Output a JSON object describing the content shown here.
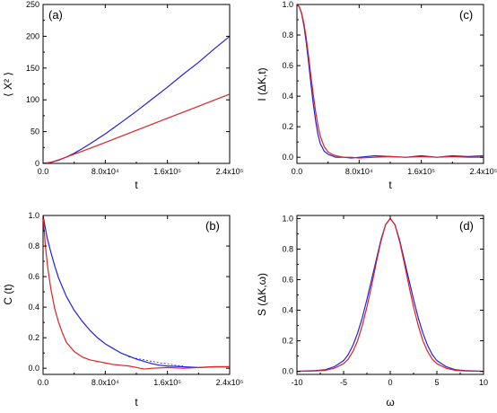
{
  "chart_data": [
    {
      "id": "a",
      "type": "line",
      "panel_label": "(a)",
      "xlabel": "t",
      "ylabel": "⟨ X² ⟩",
      "xlim": [
        0,
        240000
      ],
      "ylim": [
        0,
        250
      ],
      "x_ticks": [
        {
          "value": 0,
          "label": "0.0"
        },
        {
          "value": 80000,
          "label": "8.0x10⁴"
        },
        {
          "value": 160000,
          "label": "1.6x10⁵"
        },
        {
          "value": 240000,
          "label": "2.4x10⁵"
        }
      ],
      "y_ticks": [
        {
          "value": 0,
          "label": "0"
        },
        {
          "value": 50,
          "label": "50"
        },
        {
          "value": 100,
          "label": "100"
        },
        {
          "value": 150,
          "label": "150"
        },
        {
          "value": 200,
          "label": "200"
        },
        {
          "value": 250,
          "label": "250"
        }
      ],
      "series": [
        {
          "color": "#2020e0",
          "dashed": false,
          "x": [
            0,
            10000,
            20000,
            30000,
            40000,
            50000,
            60000,
            70000,
            80000,
            100000,
            120000,
            140000,
            160000,
            180000,
            200000,
            220000,
            240000
          ],
          "y": [
            0,
            1.5,
            5,
            10,
            16,
            23,
            30.5,
            38.5,
            46.5,
            64,
            82,
            101,
            120,
            140,
            159,
            180,
            200
          ]
        },
        {
          "color": "#e02020",
          "dashed": false,
          "x": [
            0,
            10000,
            20000,
            30000,
            40000,
            50000,
            60000,
            80000,
            100000,
            120000,
            140000,
            160000,
            180000,
            200000,
            220000,
            240000
          ],
          "y": [
            0,
            1.8,
            5.5,
            10,
            14.5,
            19,
            23.5,
            33,
            42.5,
            52,
            61.5,
            71,
            80.5,
            90,
            99.5,
            109
          ]
        }
      ]
    },
    {
      "id": "c",
      "type": "line",
      "panel_label": "(c)",
      "xlabel": "t",
      "ylabel": "I (ΔK,t)",
      "xlim": [
        0,
        240000
      ],
      "ylim": [
        -0.04,
        1.0
      ],
      "x_ticks": [
        {
          "value": 0,
          "label": "0.0"
        },
        {
          "value": 80000,
          "label": "8.0x10⁴"
        },
        {
          "value": 160000,
          "label": "1.6x10⁵"
        },
        {
          "value": 240000,
          "label": "2.4x10⁵"
        }
      ],
      "y_ticks": [
        {
          "value": 0,
          "label": "0.0"
        },
        {
          "value": 0.2,
          "label": "0.2"
        },
        {
          "value": 0.4,
          "label": "0.4"
        },
        {
          "value": 0.6,
          "label": "0.6"
        },
        {
          "value": 0.8,
          "label": "0.8"
        },
        {
          "value": 1.0,
          "label": "1.0"
        }
      ],
      "series": [
        {
          "color": "#2020e0",
          "dashed": false,
          "x": [
            0,
            3000,
            6000,
            9000,
            12000,
            15000,
            18000,
            21000,
            24000,
            27000,
            30000,
            35000,
            40000,
            45000,
            50000,
            60000,
            70000,
            80000,
            100000,
            120000,
            140000,
            160000,
            180000,
            200000,
            220000,
            240000
          ],
          "y": [
            1.0,
            0.985,
            0.94,
            0.86,
            0.75,
            0.62,
            0.48,
            0.35,
            0.24,
            0.15,
            0.09,
            0.04,
            0.02,
            0.01,
            0.0,
            0.0,
            -0.005,
            0.0,
            0.01,
            0.005,
            0.0,
            0.01,
            0.0,
            0.01,
            0.005,
            0.01
          ]
        },
        {
          "color": "#e02020",
          "dashed": false,
          "x": [
            0,
            3000,
            6000,
            9000,
            12000,
            15000,
            18000,
            21000,
            24000,
            27000,
            30000,
            35000,
            40000,
            45000,
            50000,
            60000,
            70000,
            80000,
            100000,
            120000,
            140000,
            160000,
            180000,
            200000,
            220000,
            240000
          ],
          "y": [
            1.0,
            0.985,
            0.945,
            0.875,
            0.78,
            0.66,
            0.53,
            0.41,
            0.3,
            0.21,
            0.14,
            0.07,
            0.035,
            0.02,
            0.01,
            0.0,
            0.0,
            -0.005,
            0.0,
            0.005,
            0.0,
            0.005,
            0.0,
            0.005,
            0.0,
            0.0
          ]
        }
      ]
    },
    {
      "id": "b",
      "type": "line",
      "panel_label": "(b)",
      "xlabel": "t",
      "ylabel": "C (t)",
      "xlim": [
        0,
        240000
      ],
      "ylim": [
        -0.04,
        1.0
      ],
      "x_ticks": [
        {
          "value": 0,
          "label": "0.0"
        },
        {
          "value": 80000,
          "label": "8.0x10⁴"
        },
        {
          "value": 160000,
          "label": "1.6x10⁵"
        },
        {
          "value": 240000,
          "label": "2.4x10⁵"
        }
      ],
      "y_ticks": [
        {
          "value": 0,
          "label": "0.0"
        },
        {
          "value": 0.2,
          "label": "0.2"
        },
        {
          "value": 0.4,
          "label": "0.4"
        },
        {
          "value": 0.6,
          "label": "0.6"
        },
        {
          "value": 0.8,
          "label": "0.8"
        },
        {
          "value": 1.0,
          "label": "1.0"
        }
      ],
      "series": [
        {
          "color": "#2020e0",
          "dashed": false,
          "x": [
            0,
            5000,
            10000,
            15000,
            20000,
            30000,
            40000,
            50000,
            60000,
            70000,
            80000,
            90000,
            100000,
            110000,
            120000,
            130000,
            140000,
            150000,
            160000,
            180000,
            200000,
            220000,
            240000
          ],
          "y": [
            1.0,
            0.86,
            0.76,
            0.67,
            0.59,
            0.47,
            0.38,
            0.31,
            0.25,
            0.2,
            0.16,
            0.13,
            0.1,
            0.08,
            0.06,
            0.045,
            0.03,
            0.02,
            0.015,
            0.01,
            0.005,
            0.01,
            0.01
          ]
        },
        {
          "color": "#2020e0",
          "dashed": true,
          "x": [
            110000,
            120000,
            130000,
            140000,
            150000,
            160000,
            170000,
            180000
          ],
          "y": [
            0.075,
            0.065,
            0.055,
            0.045,
            0.035,
            0.03,
            0.02,
            0.015
          ]
        },
        {
          "color": "#e02020",
          "dashed": false,
          "x": [
            0,
            3000,
            6000,
            10000,
            15000,
            20000,
            25000,
            30000,
            40000,
            50000,
            60000,
            70000,
            80000,
            90000,
            100000,
            110000,
            120000,
            130000,
            140000,
            160000,
            180000,
            200000,
            220000,
            240000
          ],
          "y": [
            1.0,
            0.8,
            0.66,
            0.52,
            0.39,
            0.3,
            0.23,
            0.17,
            0.11,
            0.075,
            0.055,
            0.045,
            0.035,
            0.025,
            0.02,
            0.015,
            0.005,
            -0.005,
            0.0,
            0.005,
            0.0,
            0.005,
            0.01,
            0.01
          ]
        }
      ]
    },
    {
      "id": "d",
      "type": "line",
      "panel_label": "(d)",
      "xlabel": "ω",
      "ylabel": "S (ΔK,ω)",
      "xlim": [
        -10,
        10
      ],
      "ylim": [
        -0.02,
        1.02
      ],
      "x_ticks": [
        {
          "value": -10,
          "label": "-10"
        },
        {
          "value": -5,
          "label": "-5"
        },
        {
          "value": 0,
          "label": "0"
        },
        {
          "value": 5,
          "label": "5"
        },
        {
          "value": 10,
          "label": "10"
        }
      ],
      "y_ticks": [
        {
          "value": 0,
          "label": "0.0"
        },
        {
          "value": 0.2,
          "label": "0.2"
        },
        {
          "value": 0.4,
          "label": "0.4"
        },
        {
          "value": 0.6,
          "label": "0.6"
        },
        {
          "value": 0.8,
          "label": "0.8"
        },
        {
          "value": 1.0,
          "label": "1.0"
        }
      ],
      "series": [
        {
          "color": "#2020e0",
          "dashed": false,
          "x": [
            -10,
            -8,
            -7,
            -6,
            -5,
            -4.5,
            -4,
            -3.5,
            -3,
            -2.5,
            -2,
            -1.5,
            -1,
            -0.5,
            0,
            0.5,
            1,
            1.5,
            2,
            2.5,
            3,
            3.5,
            4,
            4.5,
            5,
            6,
            7,
            8,
            10
          ],
          "y": [
            0.0,
            0.005,
            0.01,
            0.03,
            0.07,
            0.11,
            0.17,
            0.25,
            0.35,
            0.47,
            0.6,
            0.73,
            0.86,
            0.96,
            1.0,
            0.96,
            0.86,
            0.73,
            0.6,
            0.47,
            0.35,
            0.25,
            0.17,
            0.11,
            0.07,
            0.03,
            0.01,
            0.005,
            0.0
          ]
        },
        {
          "color": "#e02020",
          "dashed": false,
          "x": [
            -10,
            -8,
            -7,
            -6,
            -5,
            -4.5,
            -4,
            -3.5,
            -3,
            -2.5,
            -2,
            -1.5,
            -1,
            -0.5,
            0,
            0.5,
            1,
            1.5,
            2,
            2.5,
            3,
            3.5,
            4,
            4.5,
            5,
            6,
            7,
            8,
            10
          ],
          "y": [
            0.0,
            0.003,
            0.006,
            0.02,
            0.05,
            0.08,
            0.13,
            0.2,
            0.3,
            0.42,
            0.56,
            0.71,
            0.85,
            0.96,
            1.0,
            0.96,
            0.85,
            0.71,
            0.56,
            0.42,
            0.3,
            0.2,
            0.13,
            0.08,
            0.05,
            0.02,
            0.006,
            0.003,
            0.0
          ]
        }
      ]
    }
  ]
}
